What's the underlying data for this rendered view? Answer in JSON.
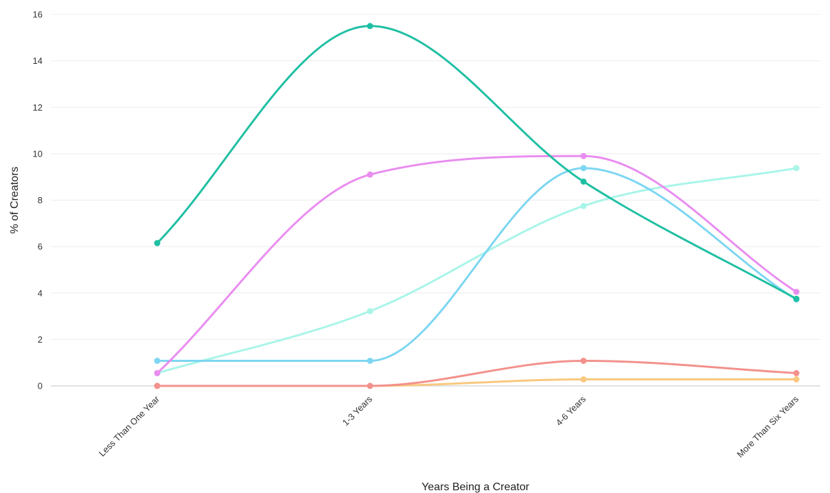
{
  "chart_data": {
    "type": "line",
    "title": "",
    "xlabel": "Years Being a Creator",
    "ylabel": "% of Creators",
    "categories": [
      "Less Than One Year",
      "1-3 Years",
      "4-6 Years",
      "More Than Six Years"
    ],
    "ylim": [
      0,
      16
    ],
    "yticks": [
      0,
      2,
      4,
      6,
      8,
      10,
      12,
      14,
      16
    ],
    "grid": true,
    "legend": "none",
    "curve": "smooth",
    "series": [
      {
        "color": "#1fbfa3",
        "values": [
          null,
          15.5,
          8.8,
          3.75
        ],
        "extra_start": [
          6.15
        ]
      },
      {
        "color": "#e98df0",
        "values": [
          0.55,
          9.1,
          9.9,
          4.05
        ]
      },
      {
        "color": "#7dd6f2",
        "values": [
          1.08,
          1.08,
          9.38,
          3.72
        ]
      },
      {
        "color": "#a9f5e8",
        "values": [
          0.55,
          3.22,
          7.75,
          9.38
        ]
      },
      {
        "color": "#f3918c",
        "values": [
          0.0,
          0.0,
          1.08,
          0.55
        ]
      },
      {
        "color": "#f9c87f",
        "values": [
          0.0,
          0.0,
          0.28,
          0.28
        ]
      }
    ]
  }
}
